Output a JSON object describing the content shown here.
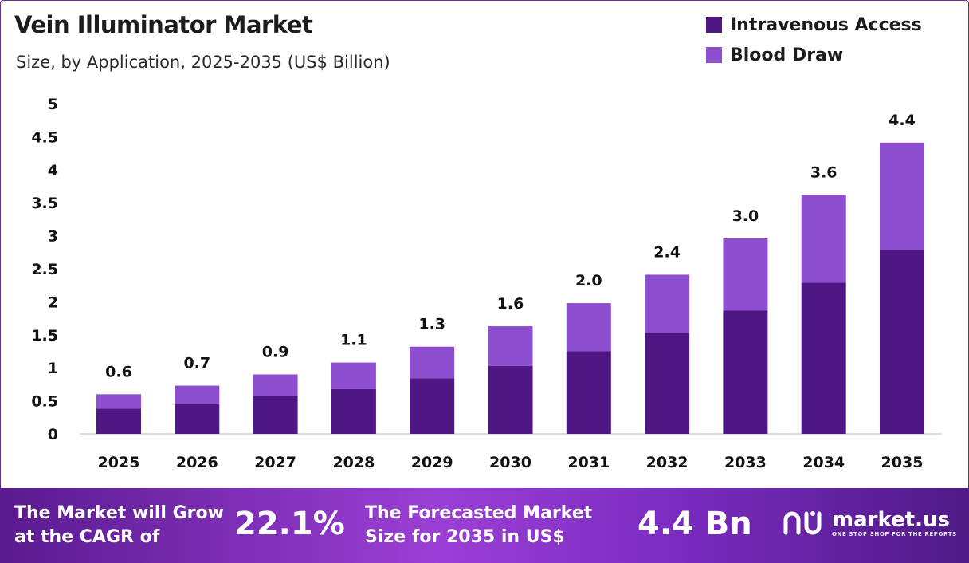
{
  "header": {
    "title": "Vein Illuminator Market",
    "subtitle": "Size, by Application, 2025-2035 (US$ Billion)"
  },
  "colors": {
    "intravenous": "#4e1783",
    "blood_draw": "#8d4fd0"
  },
  "chart_data": {
    "type": "bar",
    "stacked": true,
    "title": "Vein Illuminator Market",
    "subtitle": "Size, by Application, 2025-2035 (US$ Billion)",
    "categories": [
      "2025",
      "2026",
      "2027",
      "2028",
      "2029",
      "2030",
      "2031",
      "2032",
      "2033",
      "2034",
      "2035"
    ],
    "series": [
      {
        "name": "Intravenous Access",
        "values": [
          0.38,
          0.45,
          0.57,
          0.68,
          0.84,
          1.03,
          1.25,
          1.53,
          1.87,
          2.29,
          2.79
        ]
      },
      {
        "name": "Blood Draw",
        "values": [
          0.22,
          0.28,
          0.33,
          0.4,
          0.48,
          0.6,
          0.73,
          0.88,
          1.09,
          1.33,
          1.62
        ]
      }
    ],
    "totals_labels": [
      "0.6",
      "0.7",
      "0.9",
      "1.1",
      "1.3",
      "1.6",
      "2.0",
      "2.4",
      "3.0",
      "3.6",
      "4.4"
    ],
    "y_ticks": [
      "0",
      "0.5",
      "1",
      "1.5",
      "2",
      "2.5",
      "3",
      "3.5",
      "4",
      "4.5",
      "5"
    ],
    "ylim": [
      0,
      5
    ],
    "grid": false,
    "legend_position": "top-right"
  },
  "footer": {
    "cagr_text": "The Market will Grow at the CAGR of",
    "cagr_value": "22.1%",
    "forecast_text": "The Forecasted Market Size for 2035 in US$",
    "forecast_value": "4.4 Bn",
    "brand_name": "market.us",
    "brand_tagline": "ONE STOP SHOP FOR THE REPORTS"
  }
}
